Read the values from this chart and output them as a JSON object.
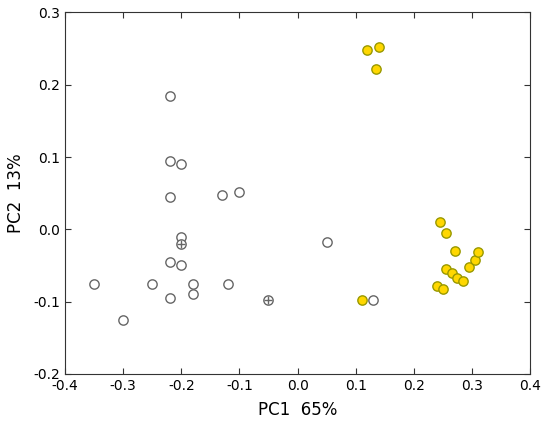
{
  "title": "",
  "xlabel": "PC1  65%",
  "ylabel": "PC2  13%",
  "xlim": [
    -0.4,
    0.4
  ],
  "ylim": [
    -0.2,
    0.3
  ],
  "xticks": [
    -0.4,
    -0.3,
    -0.2,
    -0.1,
    0.0,
    0.1,
    0.2,
    0.3,
    0.4
  ],
  "yticks": [
    -0.2,
    -0.1,
    0.0,
    0.1,
    0.2,
    0.3
  ],
  "open_circles": [
    [
      -0.35,
      -0.075
    ],
    [
      -0.3,
      -0.125
    ],
    [
      -0.25,
      -0.075
    ],
    [
      -0.22,
      0.185
    ],
    [
      -0.22,
      0.095
    ],
    [
      -0.22,
      0.045
    ],
    [
      -0.2,
      0.09
    ],
    [
      -0.22,
      -0.045
    ],
    [
      -0.2,
      -0.05
    ],
    [
      -0.2,
      -0.01
    ],
    [
      -0.18,
      -0.075
    ],
    [
      -0.22,
      -0.095
    ],
    [
      -0.18,
      -0.09
    ],
    [
      -0.13,
      0.048
    ],
    [
      -0.12,
      -0.075
    ],
    [
      -0.1,
      0.052
    ],
    [
      0.05,
      -0.018
    ],
    [
      0.13,
      -0.098
    ]
  ],
  "cross_circles": [
    [
      -0.2,
      -0.02
    ],
    [
      -0.05,
      -0.098
    ]
  ],
  "yellow_circles": [
    [
      0.12,
      0.248
    ],
    [
      0.14,
      0.252
    ],
    [
      0.135,
      0.222
    ],
    [
      0.11,
      -0.098
    ],
    [
      0.245,
      0.01
    ],
    [
      0.255,
      -0.005
    ],
    [
      0.27,
      -0.03
    ],
    [
      0.255,
      -0.055
    ],
    [
      0.265,
      -0.06
    ],
    [
      0.275,
      -0.068
    ],
    [
      0.285,
      -0.072
    ],
    [
      0.24,
      -0.078
    ],
    [
      0.25,
      -0.082
    ],
    [
      0.295,
      -0.052
    ],
    [
      0.305,
      -0.042
    ],
    [
      0.31,
      -0.032
    ]
  ],
  "marker_size": 45,
  "open_color": "white",
  "open_edgecolor": "#666666",
  "yellow_color": "#FFD700",
  "yellow_edgecolor": "#999900",
  "background_color": "white",
  "linewidth": 1.0,
  "xlabel_fontsize": 12,
  "ylabel_fontsize": 12,
  "tick_fontsize": 10
}
